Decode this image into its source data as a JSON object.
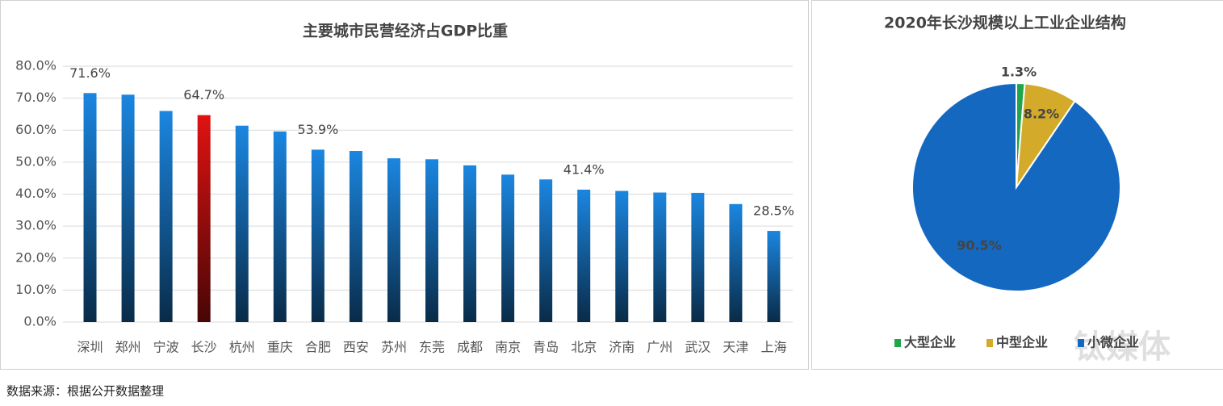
{
  "chart_data": [
    {
      "type": "bar",
      "title": "主要城市民营经济占GDP比重",
      "categories": [
        "深圳",
        "郑州",
        "宁波",
        "长沙",
        "杭州",
        "重庆",
        "合肥",
        "西安",
        "苏州",
        "东莞",
        "成都",
        "南京",
        "青岛",
        "北京",
        "济南",
        "广州",
        "武汉",
        "天津",
        "上海"
      ],
      "values": [
        71.6,
        71.1,
        66.0,
        64.7,
        61.4,
        59.6,
        53.9,
        53.5,
        51.2,
        50.9,
        49.0,
        46.1,
        44.6,
        41.4,
        41.0,
        40.5,
        40.4,
        36.9,
        28.5
      ],
      "value_labels": [
        "71.6%",
        null,
        null,
        "64.7%",
        null,
        null,
        "53.9%",
        null,
        null,
        null,
        null,
        null,
        null,
        "41.4%",
        null,
        null,
        null,
        null,
        "28.5%"
      ],
      "colors": [
        "#1b86e0",
        "#1b86e0",
        "#1b86e0",
        "#e01212",
        "#1b86e0",
        "#1b86e0",
        "#1b86e0",
        "#1b86e0",
        "#1b86e0",
        "#1b86e0",
        "#1b86e0",
        "#1b86e0",
        "#1b86e0",
        "#1b86e0",
        "#1b86e0",
        "#1b86e0",
        "#1b86e0",
        "#1b86e0",
        "#1b86e0"
      ],
      "ylim": [
        0,
        80
      ],
      "yticks": [
        {
          "value": 0,
          "label": "0.0%"
        },
        {
          "value": 10,
          "label": "10.0%"
        },
        {
          "value": 20,
          "label": "20.0%"
        },
        {
          "value": 30,
          "label": "30.0%"
        },
        {
          "value": 40,
          "label": "40.0%"
        },
        {
          "value": 50,
          "label": "50.0%"
        },
        {
          "value": 60,
          "label": "60.0%"
        },
        {
          "value": 70,
          "label": "70.0%"
        },
        {
          "value": 80,
          "label": "80.0%"
        }
      ],
      "grid": true
    },
    {
      "type": "pie",
      "title": "2020年长沙规模以上工业企业结构",
      "categories": [
        "大型企业",
        "中型企业",
        "小微企业"
      ],
      "values": [
        1.3,
        8.2,
        90.5
      ],
      "value_labels": [
        "1.3%",
        "8.2%",
        "90.5%"
      ],
      "colors": [
        "#1fa64a",
        "#d4aa2a",
        "#1468c0"
      ],
      "legend": "bottom"
    }
  ],
  "source": "数据来源：根据公开数据整理",
  "watermark": "钛媒体"
}
